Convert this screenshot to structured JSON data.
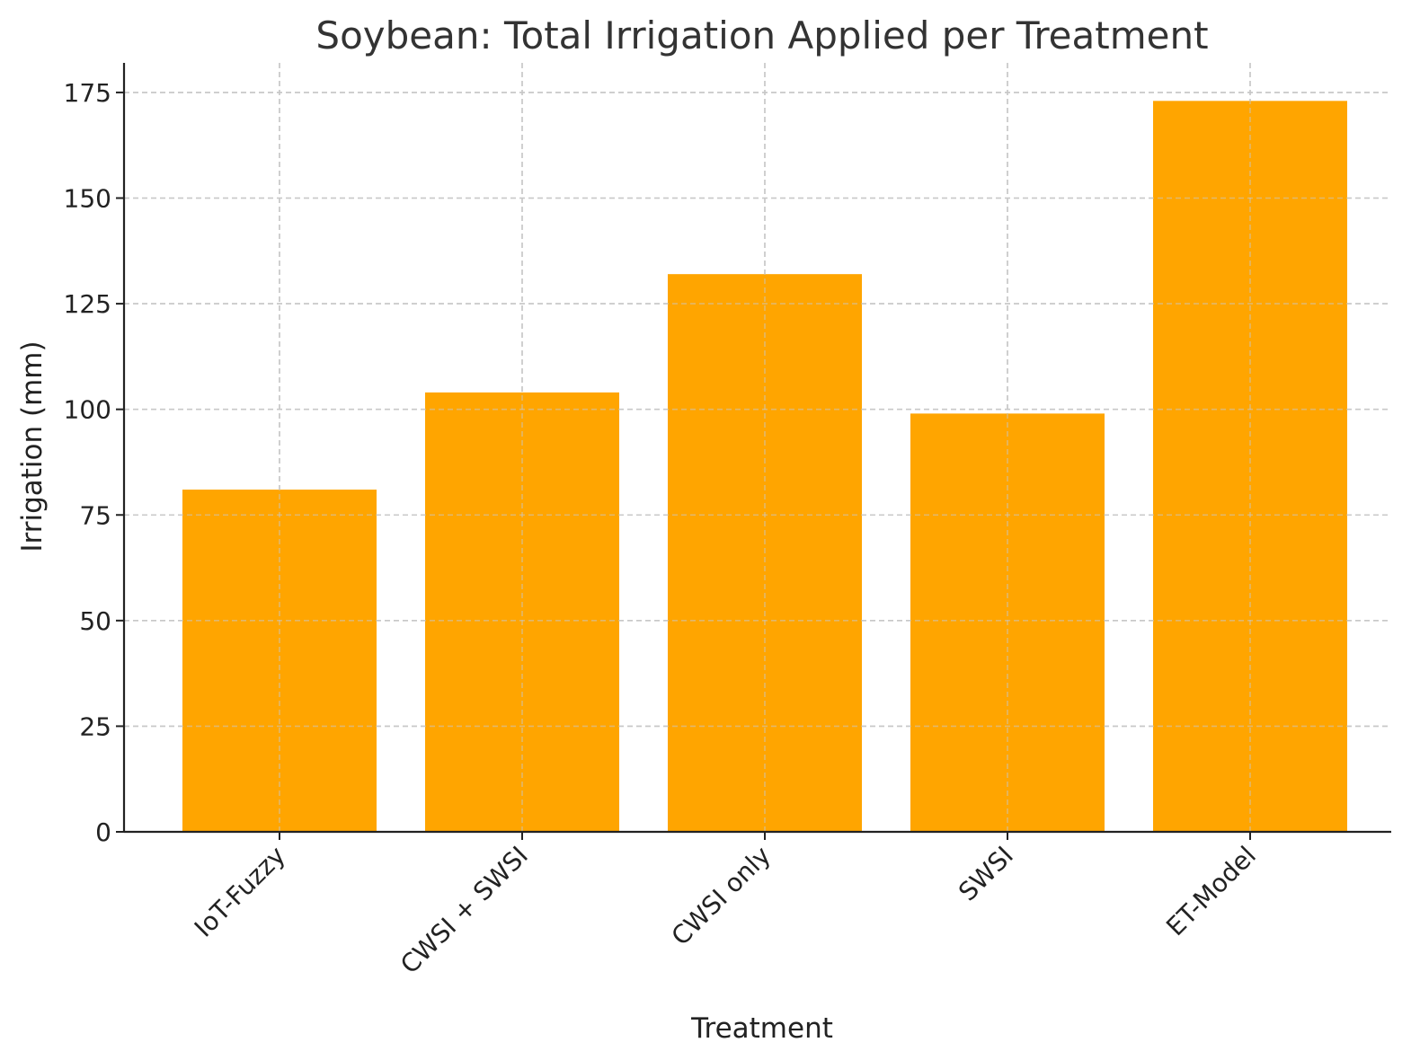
{
  "chart_data": {
    "type": "bar",
    "title": "Soybean: Total Irrigation Applied per Treatment",
    "xlabel": "Treatment",
    "ylabel": "Irrigation (mm)",
    "categories": [
      "IoT-Fuzzy",
      "CWSI + SWSI",
      "CWSI only",
      "SWSI",
      "ET-Model"
    ],
    "values": [
      81,
      104,
      132,
      99,
      173
    ],
    "ylim": [
      0,
      182
    ],
    "yticks": [
      0,
      25,
      50,
      75,
      100,
      125,
      150,
      175
    ],
    "grid": true,
    "bar_color": "#FFA500",
    "x_tick_rotation": "45deg"
  }
}
